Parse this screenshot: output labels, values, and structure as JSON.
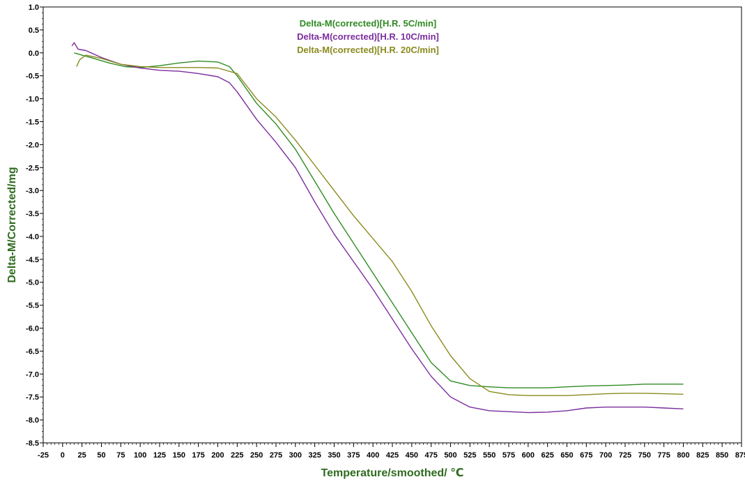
{
  "chart_data": {
    "type": "line",
    "xlabel": "Temperature/smoothed/ ℃",
    "ylabel": "Delta-M/Corrected/mg",
    "xlim": [
      -25,
      875
    ],
    "ylim": [
      -8.5,
      1.0
    ],
    "x_ticks": [
      -25,
      0,
      25,
      50,
      75,
      100,
      125,
      150,
      175,
      200,
      225,
      250,
      275,
      300,
      325,
      350,
      375,
      400,
      425,
      450,
      475,
      500,
      525,
      550,
      575,
      600,
      625,
      650,
      675,
      700,
      725,
      750,
      775,
      800,
      825,
      850,
      875
    ],
    "y_ticks": [
      1.0,
      0.5,
      0.0,
      -0.5,
      -1.0,
      -1.5,
      -2.0,
      -2.5,
      -3.0,
      -3.5,
      -4.0,
      -4.5,
      -5.0,
      -5.5,
      -6.0,
      -6.5,
      -7.0,
      -7.5,
      -8.0,
      -8.5
    ],
    "grid": false,
    "legend_position": "top-center",
    "axis_title_color": "#2e6b1f",
    "series": [
      {
        "name": "Delta-M(corrected)[H.R. 5C/min]",
        "color": "#2e8b22",
        "x": [
          15,
          25,
          40,
          60,
          80,
          100,
          125,
          150,
          175,
          200,
          215,
          225,
          250,
          275,
          300,
          325,
          350,
          375,
          400,
          425,
          450,
          475,
          500,
          525,
          550,
          575,
          600,
          625,
          650,
          675,
          700,
          725,
          750,
          775,
          800
        ],
        "y": [
          0.0,
          -0.05,
          -0.12,
          -0.22,
          -0.3,
          -0.32,
          -0.28,
          -0.22,
          -0.18,
          -0.2,
          -0.3,
          -0.5,
          -1.1,
          -1.55,
          -2.1,
          -2.8,
          -3.5,
          -4.15,
          -4.8,
          -5.45,
          -6.1,
          -6.75,
          -7.15,
          -7.25,
          -7.28,
          -7.3,
          -7.3,
          -7.3,
          -7.28,
          -7.26,
          -7.25,
          -7.24,
          -7.22,
          -7.22,
          -7.22
        ]
      },
      {
        "name": "Delta-M(corrected)[H.R. 10C/min]",
        "color": "#7b2d9e",
        "x": [
          12,
          15,
          20,
          30,
          50,
          75,
          100,
          125,
          150,
          175,
          200,
          215,
          225,
          250,
          275,
          300,
          325,
          350,
          375,
          400,
          425,
          450,
          475,
          500,
          525,
          550,
          575,
          600,
          625,
          650,
          675,
          700,
          725,
          750,
          775,
          800
        ],
        "y": [
          0.15,
          0.22,
          0.08,
          0.05,
          -0.1,
          -0.25,
          -0.33,
          -0.38,
          -0.4,
          -0.45,
          -0.52,
          -0.65,
          -0.85,
          -1.45,
          -1.95,
          -2.5,
          -3.25,
          -3.95,
          -4.55,
          -5.15,
          -5.8,
          -6.45,
          -7.05,
          -7.5,
          -7.72,
          -7.8,
          -7.82,
          -7.84,
          -7.83,
          -7.8,
          -7.74,
          -7.72,
          -7.72,
          -7.72,
          -7.74,
          -7.76
        ]
      },
      {
        "name": "Delta-M(corrected)[H.R. 20C/min]",
        "color": "#8a8a1e",
        "x": [
          18,
          22,
          30,
          50,
          75,
          100,
          125,
          150,
          175,
          200,
          225,
          250,
          275,
          300,
          325,
          350,
          375,
          400,
          425,
          450,
          475,
          500,
          525,
          550,
          575,
          600,
          625,
          650,
          675,
          700,
          725,
          750,
          775,
          800
        ],
        "y": [
          -0.3,
          -0.15,
          -0.05,
          -0.12,
          -0.25,
          -0.3,
          -0.32,
          -0.32,
          -0.32,
          -0.33,
          -0.45,
          -1.0,
          -1.4,
          -1.9,
          -2.45,
          -3.0,
          -3.55,
          -4.05,
          -4.55,
          -5.2,
          -5.95,
          -6.6,
          -7.1,
          -7.38,
          -7.45,
          -7.47,
          -7.47,
          -7.47,
          -7.45,
          -7.43,
          -7.42,
          -7.42,
          -7.43,
          -7.44
        ]
      }
    ]
  }
}
